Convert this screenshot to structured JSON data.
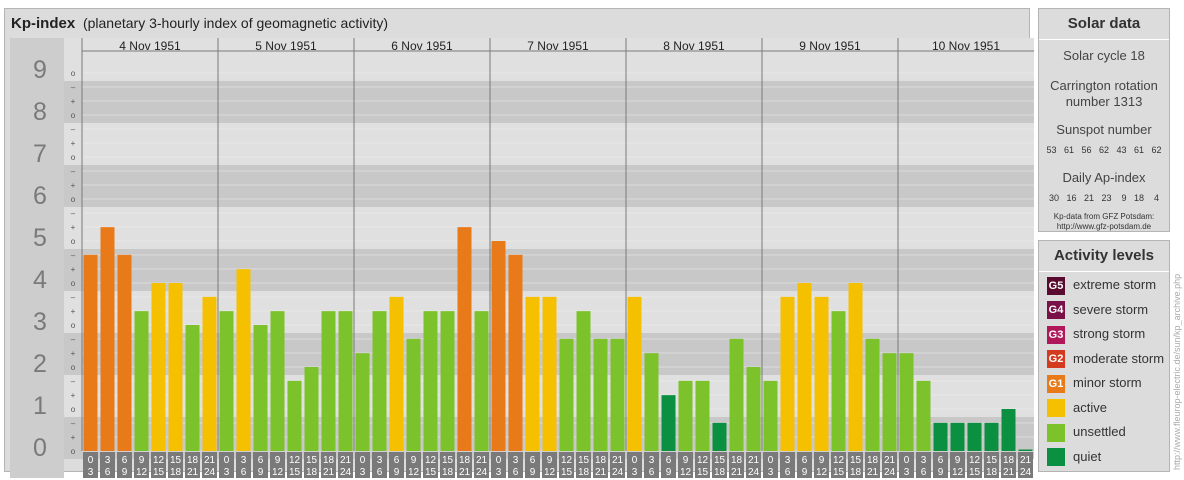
{
  "header": {
    "title": "Kp-index",
    "subtitle": "(planetary 3-hourly index of geomagnetic activity)"
  },
  "sidebar": {
    "solar_title": "Solar data",
    "solar_cycle": "Solar cycle 18",
    "carrington_line1": "Carrington rotation",
    "carrington_line2": "number 1313",
    "sunspot_title": "Sunspot number",
    "sunspot_values": "53   61   56   62   43   61   62",
    "ap_title": "Daily Ap-index",
    "ap_values": "30   16   21   23    9   18    4",
    "kp_source_line1": "Kp-data from GFZ Potsdam:",
    "kp_source_line2": "http://www.gfz-potsdam.de",
    "levels_title": "Activity levels",
    "levels": [
      {
        "badge": "G5",
        "label": "extreme storm",
        "color": "#5a0a2e"
      },
      {
        "badge": "G4",
        "label": "severe storm",
        "color": "#7a1048"
      },
      {
        "badge": "G3",
        "label": "strong storm",
        "color": "#b0185a"
      },
      {
        "badge": "G2",
        "label": "moderate storm",
        "color": "#d43a1e"
      },
      {
        "badge": "G1",
        "label": "minor storm",
        "color": "#e87a1a"
      },
      {
        "badge": "",
        "label": "active",
        "color": "#f5c000"
      },
      {
        "badge": "",
        "label": "unsettled",
        "color": "#7cc22a"
      },
      {
        "badge": "",
        "label": "quiet",
        "color": "#0a9040"
      }
    ]
  },
  "credit": "http://www.fleurop-electric.de/sun/kp_archive.php",
  "colors": {
    "active": "#f5c000",
    "unsettled": "#7cc22a",
    "quiet": "#0a9040",
    "minor_storm": "#e87a1a"
  },
  "chart_data": {
    "type": "bar",
    "ylim": [
      0,
      9
    ],
    "y_ticks": [
      "0",
      "1",
      "2",
      "3",
      "4",
      "5",
      "6",
      "7",
      "8",
      "9"
    ],
    "days": [
      "4 Nov 1951",
      "5 Nov 1951",
      "6 Nov 1951",
      "7 Nov 1951",
      "8 Nov 1951",
      "9 Nov 1951",
      "10 Nov 1951"
    ],
    "interval_start": [
      "0",
      "3",
      "6",
      "9",
      "12",
      "15",
      "18",
      "21"
    ],
    "interval_end": [
      "3",
      "6",
      "9",
      "12",
      "15",
      "18",
      "21",
      "24"
    ],
    "values": [
      [
        4.67,
        5.33,
        4.67,
        3.33,
        4.0,
        4.0,
        3.0,
        3.67
      ],
      [
        3.33,
        4.33,
        3.0,
        3.33,
        1.67,
        2.0,
        3.33,
        3.33
      ],
      [
        2.33,
        3.33,
        3.67,
        2.67,
        3.33,
        3.33,
        5.33,
        3.33
      ],
      [
        5.0,
        4.67,
        3.67,
        3.67,
        2.67,
        3.33,
        2.67,
        2.67
      ],
      [
        3.67,
        2.33,
        1.33,
        1.67,
        1.67,
        0.67,
        2.67,
        2.0
      ],
      [
        1.67,
        3.67,
        4.0,
        3.67,
        3.33,
        4.0,
        2.67,
        2.33
      ],
      [
        2.33,
        1.67,
        0.67,
        0.67,
        0.67,
        0.67,
        1.0,
        0.0
      ]
    ]
  }
}
